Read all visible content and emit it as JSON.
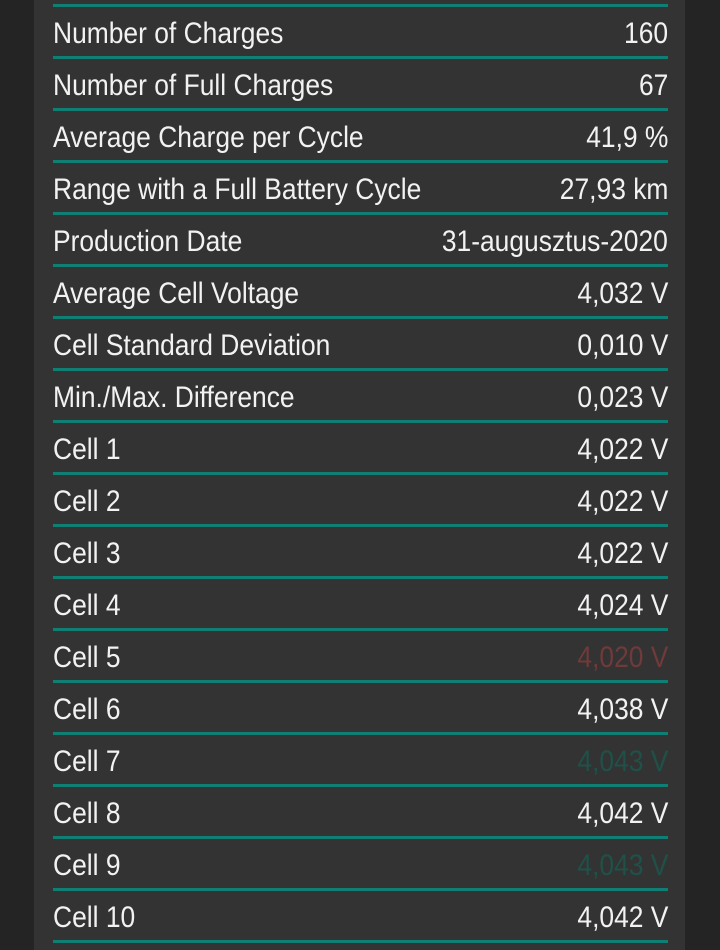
{
  "colors": {
    "page_background": "#242424",
    "panel_background": "#333333",
    "divider": "#0f7f74",
    "text": "#f2f2f2",
    "min_cell": "#6f3a3a",
    "max_cell": "#1f5148"
  },
  "stats": [
    {
      "label": "Number of Charges",
      "value": "160",
      "state": "normal"
    },
    {
      "label": "Number of Full Charges",
      "value": "67",
      "state": "normal"
    },
    {
      "label": "Average Charge per Cycle",
      "value": "41,9 %",
      "state": "normal"
    },
    {
      "label": "Range with a Full Battery Cycle",
      "value": "27,93 km",
      "state": "normal"
    },
    {
      "label": "Production Date",
      "value": "31-augusztus-2020",
      "state": "normal"
    },
    {
      "label": "Average Cell Voltage",
      "value": "4,032 V",
      "state": "normal"
    },
    {
      "label": "Cell Standard Deviation",
      "value": "0,010 V",
      "state": "normal"
    },
    {
      "label": "Min./Max. Difference",
      "value": "0,023 V",
      "state": "normal"
    },
    {
      "label": "Cell 1",
      "value": "4,022 V",
      "state": "normal"
    },
    {
      "label": "Cell 2",
      "value": "4,022 V",
      "state": "normal"
    },
    {
      "label": "Cell 3",
      "value": "4,022 V",
      "state": "normal"
    },
    {
      "label": "Cell 4",
      "value": "4,024 V",
      "state": "normal"
    },
    {
      "label": "Cell 5",
      "value": "4,020 V",
      "state": "min"
    },
    {
      "label": "Cell 6",
      "value": "4,038 V",
      "state": "normal"
    },
    {
      "label": "Cell 7",
      "value": "4,043 V",
      "state": "max"
    },
    {
      "label": "Cell 8",
      "value": "4,042 V",
      "state": "normal"
    },
    {
      "label": "Cell 9",
      "value": "4,043 V",
      "state": "max"
    },
    {
      "label": "Cell 10",
      "value": "4,042 V",
      "state": "normal"
    }
  ]
}
